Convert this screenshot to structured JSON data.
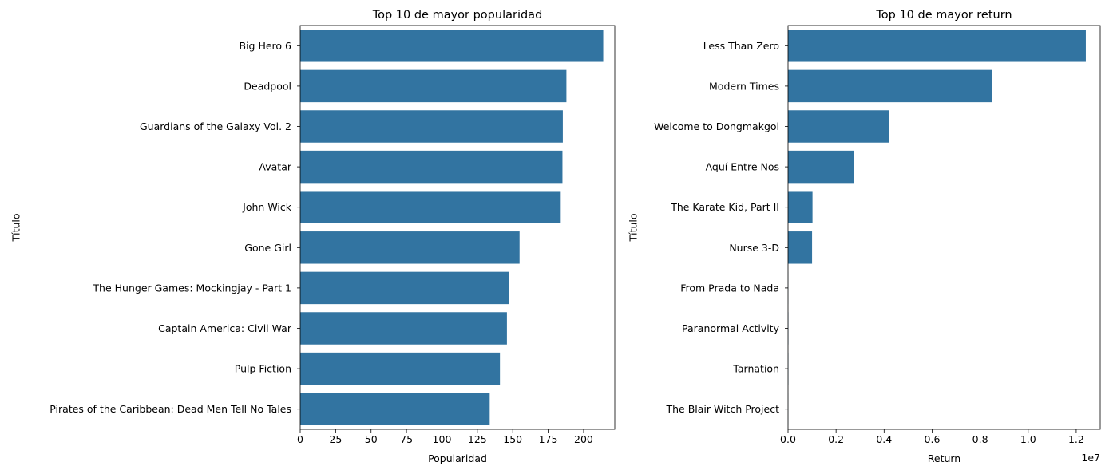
{
  "chart_data": [
    {
      "type": "bar",
      "orientation": "horizontal",
      "title": "Top 10 de mayor popularidad",
      "xlabel": "Popularidad",
      "ylabel": "Título",
      "categories": [
        "Big Hero 6",
        "Deadpool",
        "Guardians of the Galaxy Vol. 2",
        "Avatar",
        "John Wick",
        "Gone Girl",
        "The Hunger Games: Mockingjay - Part 1",
        "Captain America: Civil War",
        "Pulp Fiction",
        "Pirates of the Caribbean: Dead Men Tell No Tales"
      ],
      "values": [
        213.85,
        187.86,
        185.33,
        185.07,
        183.87,
        154.8,
        147.1,
        145.88,
        140.95,
        133.73
      ],
      "xlim": [
        0,
        222
      ],
      "xticks": [
        0,
        25,
        50,
        75,
        100,
        125,
        150,
        175,
        200
      ],
      "xtick_labels": [
        "0",
        "25",
        "50",
        "75",
        "100",
        "125",
        "150",
        "175",
        "200"
      ],
      "offset_label": "",
      "grid": false,
      "color": "#3274a1"
    },
    {
      "type": "bar",
      "orientation": "horizontal",
      "title": "Top 10 de mayor return",
      "xlabel": "Return",
      "ylabel": "Título",
      "categories": [
        "Less Than Zero",
        "Modern Times",
        "Welcome to Dongmakgol",
        "Aquí Entre Nos",
        "The Karate Kid, Part II",
        "Nurse 3-D",
        "From Prada to Nada",
        "Paranormal Activity",
        "Tarnation",
        "The Blair Witch Project"
      ],
      "values": [
        12400000,
        8500000,
        4200000,
        2750000,
        1018000,
        1000000,
        4000,
        12890,
        12000,
        4133
      ],
      "xlim": [
        0,
        13000000
      ],
      "xticks": [
        0,
        2000000,
        4000000,
        6000000,
        8000000,
        10000000,
        12000000
      ],
      "xtick_labels": [
        "0.0",
        "0.2",
        "0.4",
        "0.6",
        "0.8",
        "1.0",
        "1.2"
      ],
      "offset_label": "1e7",
      "grid": false,
      "color": "#3274a1"
    }
  ]
}
